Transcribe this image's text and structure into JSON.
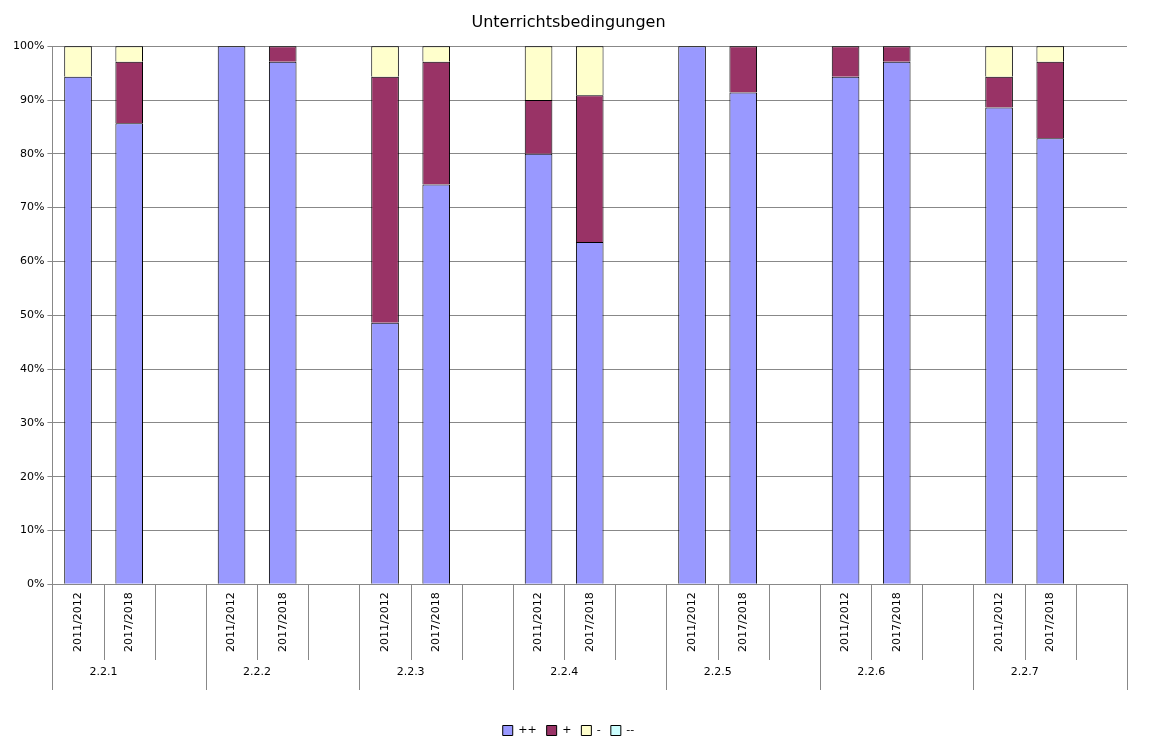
{
  "chart_data": {
    "type": "bar",
    "title": "Unterrichtsbedingungen",
    "stacked": true,
    "grid": "y",
    "legend": "bottom",
    "categories": [
      "2011/2012",
      "2017/2018",
      null,
      "2011/2012",
      "2017/2018",
      null,
      "2011/2012",
      "2017/2018",
      null,
      "2011/2012",
      "2017/2018",
      null,
      "2011/2012",
      "2017/2018",
      null,
      "2011/2012",
      "2017/2018",
      null,
      "2011/2012",
      "2017/2018",
      null
    ],
    "series": [
      {
        "name": "++",
        "color": "#9999ff",
        "values": [
          94.3,
          85.7,
          null,
          100,
          97.1,
          null,
          48.6,
          74.3,
          null,
          80,
          63.6,
          null,
          100,
          91.4,
          null,
          94.3,
          97.1,
          null,
          88.6,
          82.9,
          null
        ]
      },
      {
        "name": "+",
        "color": "#993366",
        "values": [
          0,
          11.4,
          null,
          0,
          2.9,
          null,
          45.7,
          22.8,
          null,
          10,
          27.3,
          null,
          0,
          8.6,
          null,
          5.7,
          2.9,
          null,
          5.7,
          14.2,
          null
        ]
      },
      {
        "name": "-",
        "color": "#ffffcc",
        "values": [
          5.7,
          2.9,
          null,
          0,
          0,
          null,
          5.7,
          2.9,
          null,
          10,
          9.1,
          null,
          0,
          0,
          null,
          0,
          0,
          null,
          5.7,
          2.9,
          null
        ]
      },
      {
        "name": "--",
        "color": "#ccffff",
        "values": [
          0,
          0,
          null,
          0,
          0,
          null,
          0,
          0,
          null,
          0,
          0,
          null,
          0,
          0,
          null,
          0,
          0,
          null,
          0,
          0,
          null
        ]
      }
    ],
    "ylim": [
      0,
      100
    ],
    "yticks": [
      {
        "value": 0,
        "label": "0%"
      },
      {
        "value": 10,
        "label": "10%"
      },
      {
        "value": 20,
        "label": "20%"
      },
      {
        "value": 30,
        "label": "30%"
      },
      {
        "value": 40,
        "label": "40%"
      },
      {
        "value": 50,
        "label": "50%"
      },
      {
        "value": 60,
        "label": "60%"
      },
      {
        "value": 70,
        "label": "70%"
      },
      {
        "value": 80,
        "label": "80%"
      },
      {
        "value": 90,
        "label": "90%"
      },
      {
        "value": 100,
        "label": "100%"
      }
    ],
    "annotations": [
      "2.2.1",
      "2.2.2",
      "2.2.3",
      "2.2.4",
      "2.2.5",
      "2.2.6",
      "2.2.7"
    ]
  }
}
